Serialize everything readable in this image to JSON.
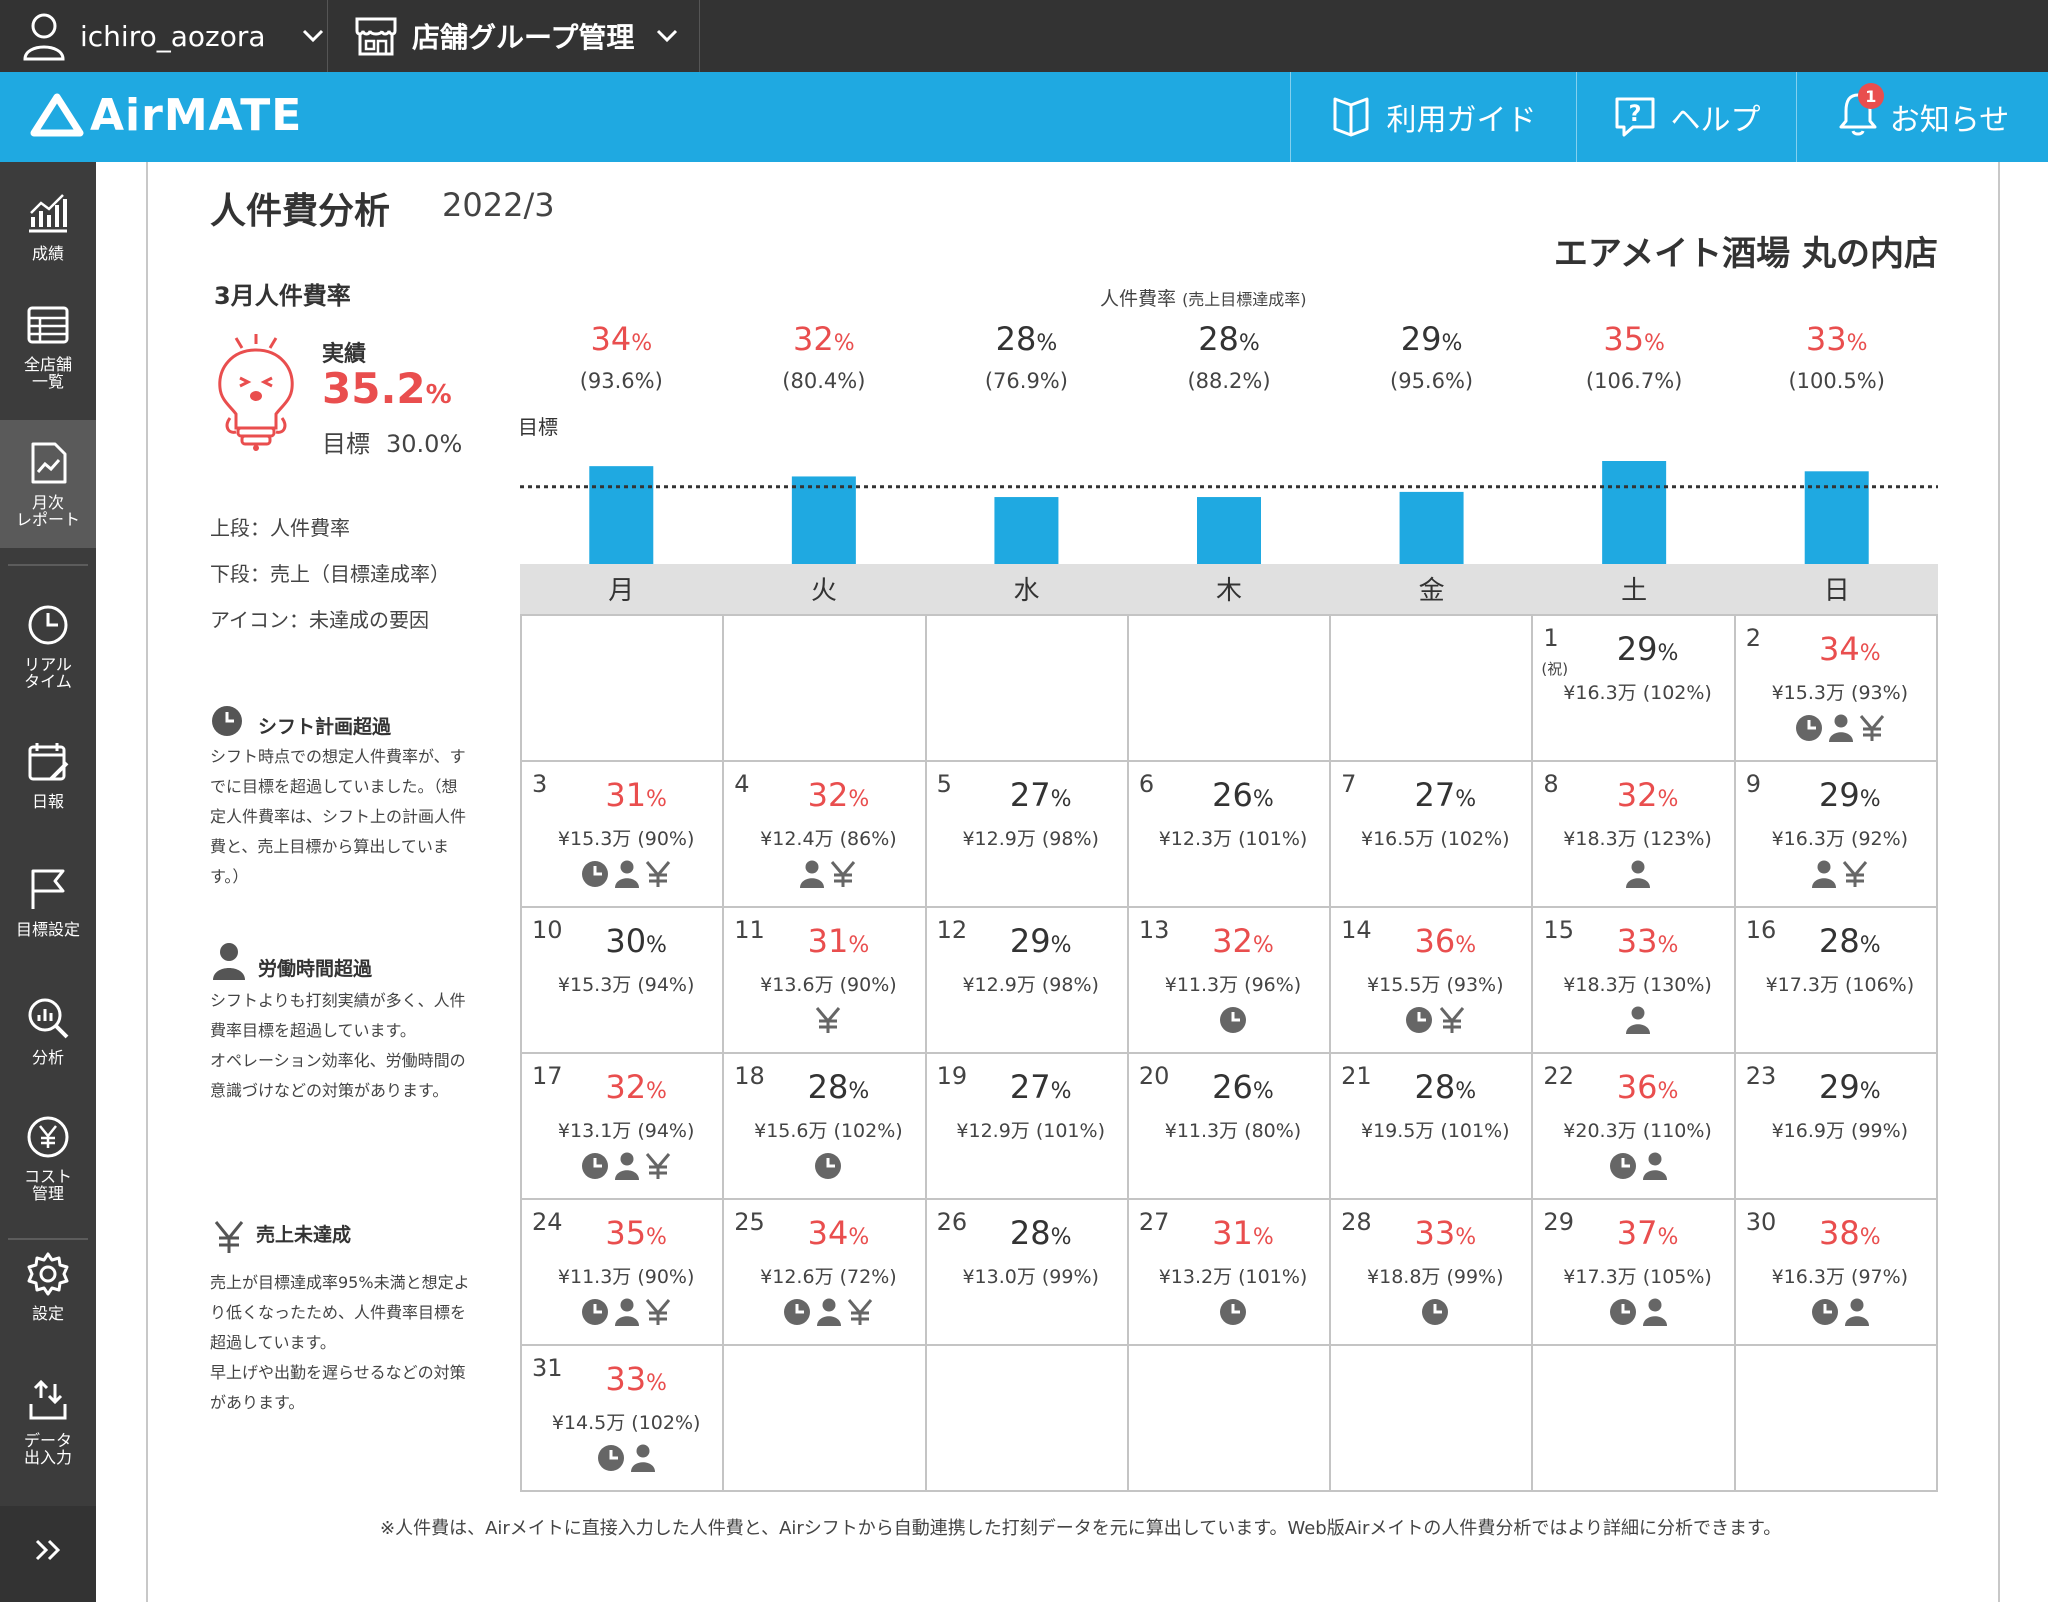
{
  "topbar": {
    "username": "ichiro_aozora",
    "group_label": "店舗グループ管理"
  },
  "header": {
    "logo": "AirMATE",
    "guide": "利用ガイド",
    "help": "ヘルプ",
    "news": "お知らせ",
    "news_badge": "1"
  },
  "sidebar": [
    {
      "label": "成績",
      "icon": "chart-icon"
    },
    {
      "label": "全店舗\n一覧",
      "icon": "table-icon"
    },
    {
      "label": "月次\nレポート",
      "icon": "report-icon",
      "active": true
    },
    {
      "label": "リアル\nタイム",
      "icon": "realtime-icon"
    },
    {
      "label": "日報",
      "icon": "daily-icon"
    },
    {
      "label": "目標設定",
      "icon": "flag-icon"
    },
    {
      "label": "分析",
      "icon": "analysis-icon"
    },
    {
      "label": "コスト\n管理",
      "icon": "yen-icon"
    },
    {
      "label": "設定",
      "icon": "gear-icon"
    },
    {
      "label": "データ\n出入力",
      "icon": "io-icon"
    }
  ],
  "page": {
    "title": "人件費分析",
    "month": "2022/3",
    "store": "エアメイト酒場 丸の内店"
  },
  "summary": {
    "heading": "3月人件費率",
    "actual_label": "実績",
    "actual_value": "35.2",
    "actual_unit": "%",
    "target_label": "目標",
    "target_value": "30.0%"
  },
  "legend": {
    "upper": "上段：人件費率",
    "lower": "下段：売上（目標達成率）",
    "icon": "アイコン：未達成の要因"
  },
  "reasons": {
    "shift": {
      "title": "シフト計画超過",
      "desc": "シフト時点での想定人件費率が、すでに目標を超過していました。（想定人件費率は、シフト上の計画人件費と、売上目標から算出しています。）"
    },
    "labor": {
      "title": "労働時間超過",
      "desc": "シフトよりも打刻実績が多く、人件費率目標を超過しています。\nオペレーション効率化、労働時間の意識づけなどの対策があります。"
    },
    "sales": {
      "title": "売上未達成",
      "desc": "売上が目標達成率95%未満と想定より低くなったため、人件費率目標を超過しています。\n早上げや出勤を遅らせるなどの対策があります。"
    }
  },
  "chart_data": {
    "type": "bar",
    "title": "人件費率",
    "subtitle": "(売上目標達成率)",
    "target_label": "目標",
    "target": 30,
    "categories": [
      "月",
      "火",
      "水",
      "木",
      "金",
      "土",
      "日"
    ],
    "series": [
      {
        "values": [
          34,
          32,
          28,
          28,
          29,
          35,
          33
        ]
      }
    ],
    "value_labels": [
      "34",
      "32",
      "28",
      "28",
      "29",
      "35",
      "33"
    ],
    "achievement": [
      "(93.6%)",
      "(80.4%)",
      "(76.9%)",
      "(88.2%)",
      "(95.6%)",
      "(106.7%)",
      "(100.5%)"
    ],
    "over_target": [
      true,
      true,
      false,
      false,
      false,
      true,
      true
    ],
    "colors": {
      "bar": "#1fa9e1",
      "over": "#e94e4e",
      "normal": "#333333"
    }
  },
  "calendar": {
    "weekdays": [
      "月",
      "火",
      "水",
      "木",
      "金",
      "土",
      "日"
    ],
    "leading_blanks": 5,
    "trailing_blanks": 6,
    "days": [
      {
        "d": "1",
        "hol": "(祝)",
        "pct": "29",
        "sales": "¥16.3万 (102%)",
        "over": false,
        "icons": []
      },
      {
        "d": "2",
        "pct": "34",
        "sales": "¥15.3万 (93%)",
        "over": true,
        "icons": [
          "clock",
          "person",
          "yen"
        ]
      },
      {
        "d": "3",
        "pct": "31",
        "sales": "¥15.3万 (90%)",
        "over": true,
        "icons": [
          "clock",
          "person",
          "yen"
        ]
      },
      {
        "d": "4",
        "pct": "32",
        "sales": "¥12.4万 (86%)",
        "over": true,
        "icons": [
          "person",
          "yen"
        ]
      },
      {
        "d": "5",
        "pct": "27",
        "sales": "¥12.9万 (98%)",
        "over": false,
        "icons": []
      },
      {
        "d": "6",
        "pct": "26",
        "sales": "¥12.3万 (101%)",
        "over": false,
        "icons": []
      },
      {
        "d": "7",
        "pct": "27",
        "sales": "¥16.5万 (102%)",
        "over": false,
        "icons": []
      },
      {
        "d": "8",
        "pct": "32",
        "sales": "¥18.3万 (123%)",
        "over": true,
        "icons": [
          "person"
        ]
      },
      {
        "d": "9",
        "pct": "29",
        "sales": "¥16.3万 (92%)",
        "over": false,
        "icons": [
          "person",
          "yen"
        ]
      },
      {
        "d": "10",
        "pct": "30",
        "sales": "¥15.3万 (94%)",
        "over": false,
        "icons": []
      },
      {
        "d": "11",
        "pct": "31",
        "sales": "¥13.6万 (90%)",
        "over": true,
        "icons": [
          "yen"
        ]
      },
      {
        "d": "12",
        "pct": "29",
        "sales": "¥12.9万 (98%)",
        "over": false,
        "icons": []
      },
      {
        "d": "13",
        "pct": "32",
        "sales": "¥11.3万 (96%)",
        "over": true,
        "icons": [
          "clock"
        ]
      },
      {
        "d": "14",
        "pct": "36",
        "sales": "¥15.5万 (93%)",
        "over": true,
        "icons": [
          "clock",
          "yen"
        ]
      },
      {
        "d": "15",
        "pct": "33",
        "sales": "¥18.3万 (130%)",
        "over": true,
        "icons": [
          "person"
        ]
      },
      {
        "d": "16",
        "pct": "28",
        "sales": "¥17.3万 (106%)",
        "over": false,
        "icons": []
      },
      {
        "d": "17",
        "pct": "32",
        "sales": "¥13.1万 (94%)",
        "over": true,
        "icons": [
          "clock",
          "person",
          "yen"
        ]
      },
      {
        "d": "18",
        "pct": "28",
        "sales": "¥15.6万 (102%)",
        "over": false,
        "icons": [
          "clock"
        ]
      },
      {
        "d": "19",
        "pct": "27",
        "sales": "¥12.9万 (101%)",
        "over": false,
        "icons": []
      },
      {
        "d": "20",
        "pct": "26",
        "sales": "¥11.3万 (80%)",
        "over": false,
        "icons": []
      },
      {
        "d": "21",
        "pct": "28",
        "sales": "¥19.5万 (101%)",
        "over": false,
        "icons": []
      },
      {
        "d": "22",
        "pct": "36",
        "sales": "¥20.3万 (110%)",
        "over": true,
        "icons": [
          "clock",
          "person"
        ]
      },
      {
        "d": "23",
        "pct": "29",
        "sales": "¥16.9万 (99%)",
        "over": false,
        "icons": []
      },
      {
        "d": "24",
        "pct": "35",
        "sales": "¥11.3万 (90%)",
        "over": true,
        "icons": [
          "clock",
          "person",
          "yen"
        ]
      },
      {
        "d": "25",
        "pct": "34",
        "sales": "¥12.6万 (72%)",
        "over": true,
        "icons": [
          "clock",
          "person",
          "yen"
        ]
      },
      {
        "d": "26",
        "pct": "28",
        "sales": "¥13.0万 (99%)",
        "over": false,
        "icons": []
      },
      {
        "d": "27",
        "pct": "31",
        "sales": "¥13.2万 (101%)",
        "over": true,
        "icons": [
          "clock"
        ]
      },
      {
        "d": "28",
        "pct": "33",
        "sales": "¥18.8万 (99%)",
        "over": true,
        "icons": [
          "clock"
        ]
      },
      {
        "d": "29",
        "pct": "37",
        "sales": "¥17.3万 (105%)",
        "over": true,
        "icons": [
          "clock",
          "person"
        ]
      },
      {
        "d": "30",
        "pct": "38",
        "sales": "¥16.3万 (97%)",
        "over": true,
        "icons": [
          "clock",
          "person"
        ]
      },
      {
        "d": "31",
        "pct": "33",
        "sales": "¥14.5万 (102%)",
        "over": true,
        "icons": [
          "clock",
          "person"
        ]
      }
    ]
  },
  "footnote": "※人件費は、Airメイトに直接入力した人件費と、Airシフトから自動連携した打刻データを元に算出しています。Web版Airメイトの人件費分析ではより詳細に分析できます。"
}
